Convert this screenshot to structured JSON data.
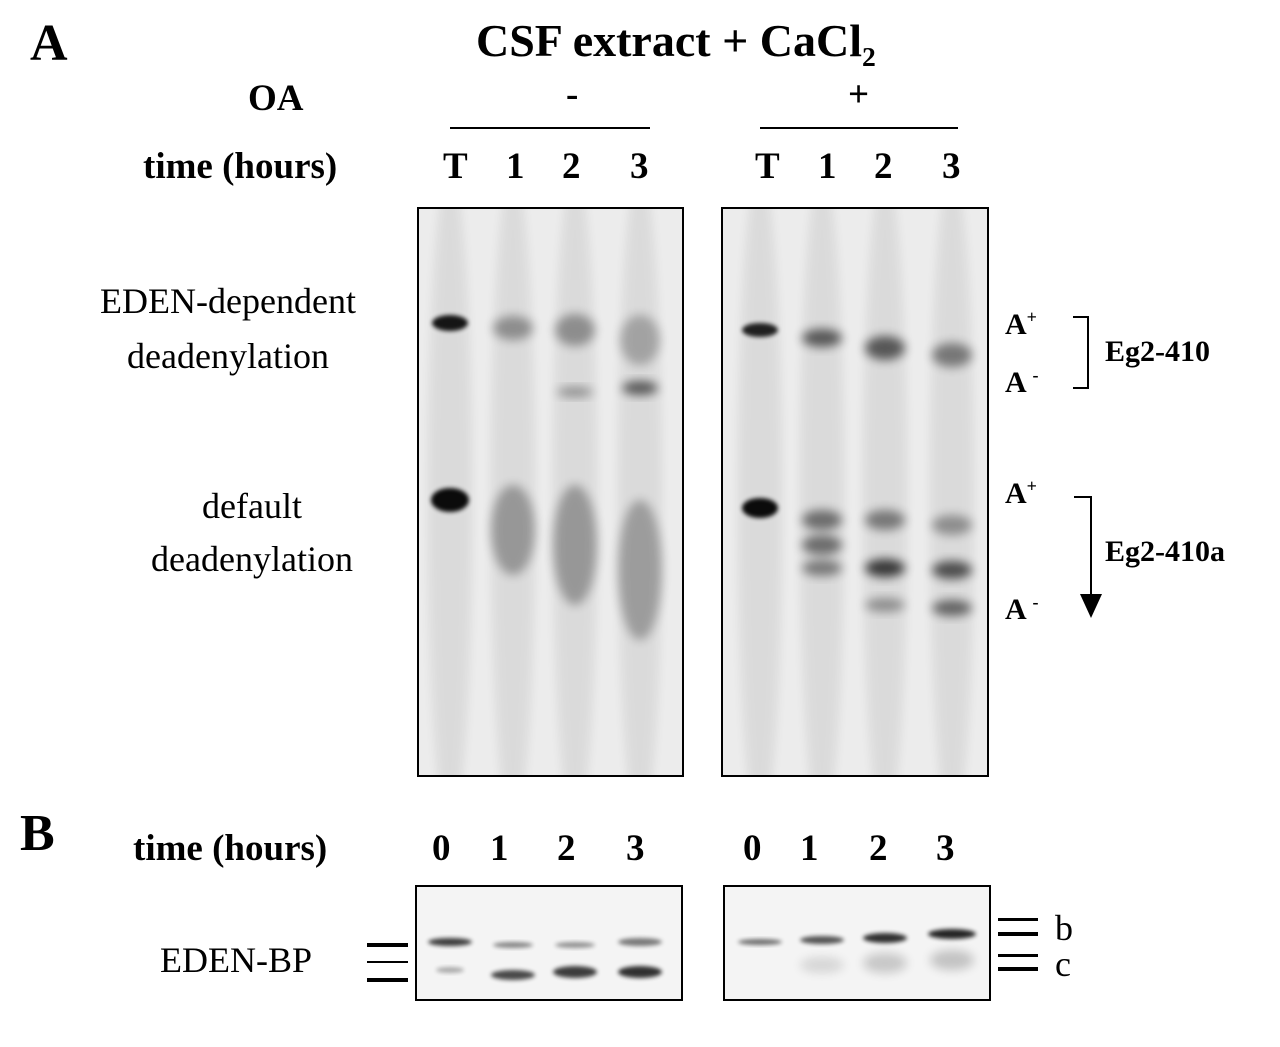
{
  "panel_a": {
    "letter": "A",
    "title": "CSF extract + CaCl",
    "title_subscript": "2",
    "oa_label": "OA",
    "oa_minus": "-",
    "oa_plus": "+",
    "time_label": "time (hours)",
    "lanes_left": [
      "T",
      "1",
      "2",
      "3"
    ],
    "lanes_right": [
      "T",
      "1",
      "2",
      "3"
    ],
    "row1_label_line1": "EDEN-dependent",
    "row1_label_line2": "deadenylation",
    "row2_label_line1": "default",
    "row2_label_line2": "deadenylation",
    "markers": {
      "a_plus": "A",
      "plus_sup": "+",
      "a_minus": "A",
      "minus_sup": "-",
      "eg2_410": "Eg2-410",
      "eg2_410a": "Eg2-410a"
    }
  },
  "panel_b": {
    "letter": "B",
    "time_label": "time (hours)",
    "lanes_left": [
      "0",
      "1",
      "2",
      "3"
    ],
    "lanes_right": [
      "0",
      "1",
      "2",
      "3"
    ],
    "protein_label": "EDEN-BP",
    "band_b": "b",
    "band_c": "c"
  }
}
